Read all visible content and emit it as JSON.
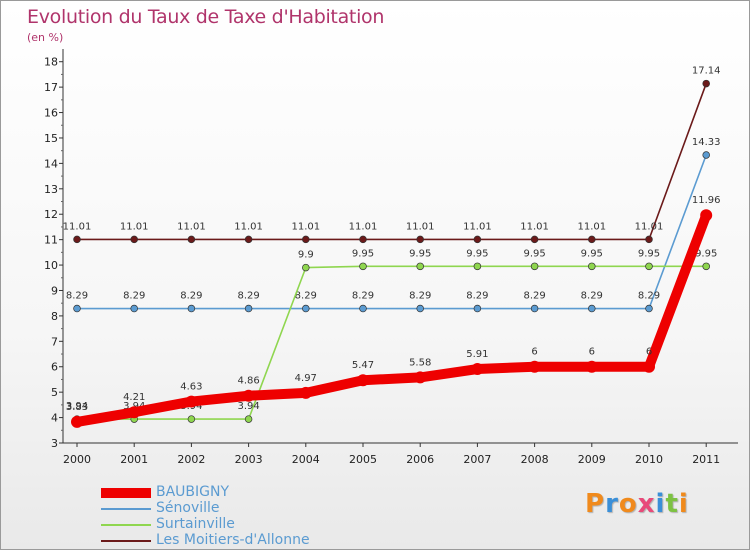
{
  "title": "Evolution du Taux de Taxe d'Habitation",
  "subtitle": "(en %)",
  "logo": {
    "text": "Proxiti",
    "letters": [
      {
        "ch": "P",
        "color": "#f08a1c"
      },
      {
        "ch": "r",
        "color": "#3a8fd8"
      },
      {
        "ch": "o",
        "color": "#f08a1c"
      },
      {
        "ch": "x",
        "color": "#e84a7a"
      },
      {
        "ch": "i",
        "color": "#3a8fd8"
      },
      {
        "ch": "t",
        "color": "#7dc242"
      },
      {
        "ch": "i",
        "color": "#f08a1c"
      }
    ]
  },
  "chart_data": {
    "type": "line",
    "title": "Evolution du Taux de Taxe d'Habitation",
    "ylabel": "(en %)",
    "xlabel": "",
    "x": [
      "2000",
      "2001",
      "2002",
      "2003",
      "2004",
      "2005",
      "2006",
      "2007",
      "2008",
      "2009",
      "2010",
      "2011"
    ],
    "ylim": [
      3,
      18
    ],
    "yticks": [
      3,
      4,
      5,
      6,
      7,
      8,
      9,
      10,
      11,
      12,
      13,
      14,
      15,
      16,
      17,
      18
    ],
    "grid": false,
    "legend_position": "bottom-left",
    "series": [
      {
        "name": "Les Moitiers-d'Allonne",
        "color": "#6b1a1a",
        "values": [
          11.01,
          11.01,
          11.01,
          11.01,
          11.01,
          11.01,
          11.01,
          11.01,
          11.01,
          11.01,
          11.01,
          17.14
        ],
        "labels": [
          "11.01",
          "11.01",
          "11.01",
          "11.01",
          "11.01",
          "11.01",
          "11.01",
          "11.01",
          "11.01",
          "11.01",
          "11.01",
          "17.14"
        ]
      },
      {
        "name": "Sénoville",
        "color": "#5b9bd1",
        "values": [
          8.29,
          8.29,
          8.29,
          8.29,
          8.29,
          8.29,
          8.29,
          8.29,
          8.29,
          8.29,
          8.29,
          14.33
        ],
        "labels": [
          "8.29",
          "8.29",
          "8.29",
          "8.29",
          "8.29",
          "8.29",
          "8.29",
          "8.29",
          "8.29",
          "8.29",
          "8.29",
          "14.33"
        ]
      },
      {
        "name": "Surtainville",
        "color": "#8fd64f",
        "values": [
          3.94,
          3.94,
          3.94,
          3.94,
          9.9,
          9.95,
          9.95,
          9.95,
          9.95,
          9.95,
          9.95,
          9.95
        ],
        "labels": [
          "3.94",
          "3.94",
          "3.94",
          "3.94",
          "9.9",
          "9.95",
          "9.95",
          "9.95",
          "9.95",
          "9.95",
          "9.95",
          "9.95"
        ]
      },
      {
        "name": "BAUBIGNY",
        "color": "#ee0000",
        "values": [
          3.83,
          4.21,
          4.63,
          4.86,
          4.97,
          5.47,
          5.58,
          5.91,
          6,
          6,
          6,
          11.96
        ],
        "labels": [
          "3.83",
          "4.21",
          "4.63",
          "4.86",
          "4.97",
          "5.47",
          "5.58",
          "5.91",
          "6",
          "6",
          "6",
          "11.96"
        ]
      }
    ],
    "legend": [
      {
        "name": "BAUBIGNY",
        "color": "#ee0000",
        "weight": 10
      },
      {
        "name": "Sénoville",
        "color": "#5b9bd1",
        "weight": 2
      },
      {
        "name": "Surtainville",
        "color": "#8fd64f",
        "weight": 2
      },
      {
        "name": "Les Moitiers-d'Allonne",
        "color": "#6b1a1a",
        "weight": 2
      }
    ]
  }
}
